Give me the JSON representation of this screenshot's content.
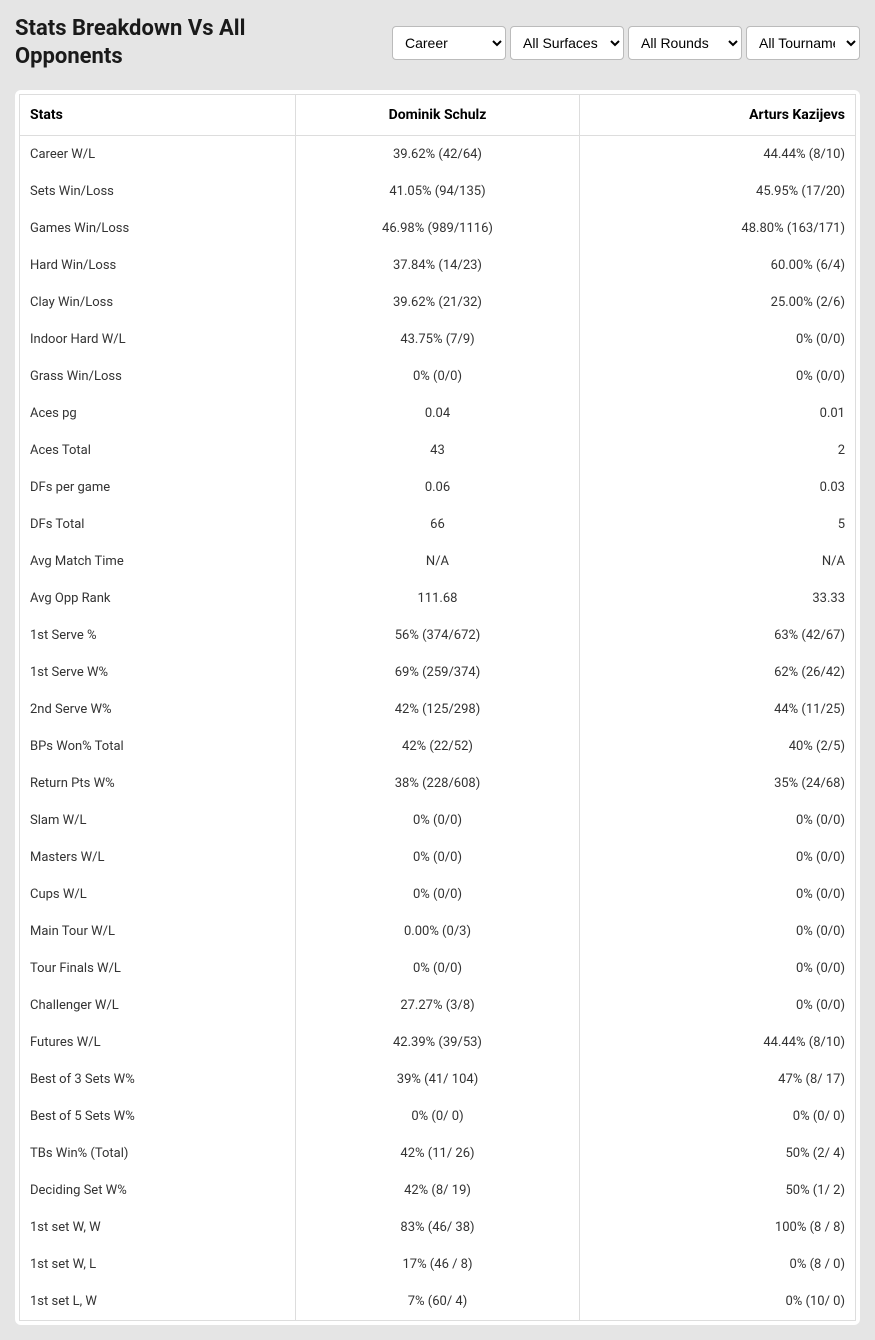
{
  "header": {
    "title": "Stats Breakdown Vs All Opponents"
  },
  "filters": {
    "career": {
      "selected": "Career",
      "options": [
        "Career"
      ]
    },
    "surface": {
      "selected": "All Surfaces",
      "options": [
        "All Surfaces"
      ]
    },
    "rounds": {
      "selected": "All Rounds",
      "options": [
        "All Rounds"
      ]
    },
    "tournaments": {
      "selected": "All Tournaments",
      "options": [
        "All Tournaments"
      ]
    }
  },
  "table": {
    "columns": [
      "Stats",
      "Dominik Schulz",
      "Arturs Kazijevs"
    ],
    "rows": [
      [
        "Career W/L",
        "39.62% (42/64)",
        "44.44% (8/10)"
      ],
      [
        "Sets Win/Loss",
        "41.05% (94/135)",
        "45.95% (17/20)"
      ],
      [
        "Games Win/Loss",
        "46.98% (989/1116)",
        "48.80% (163/171)"
      ],
      [
        "Hard Win/Loss",
        "37.84% (14/23)",
        "60.00% (6/4)"
      ],
      [
        "Clay Win/Loss",
        "39.62% (21/32)",
        "25.00% (2/6)"
      ],
      [
        "Indoor Hard W/L",
        "43.75% (7/9)",
        "0% (0/0)"
      ],
      [
        "Grass Win/Loss",
        "0% (0/0)",
        "0% (0/0)"
      ],
      [
        "Aces pg",
        "0.04",
        "0.01"
      ],
      [
        "Aces Total",
        "43",
        "2"
      ],
      [
        "DFs per game",
        "0.06",
        "0.03"
      ],
      [
        "DFs Total",
        "66",
        "5"
      ],
      [
        "Avg Match Time",
        "N/A",
        "N/A"
      ],
      [
        "Avg Opp Rank",
        "111.68",
        "33.33"
      ],
      [
        "1st Serve %",
        "56% (374/672)",
        "63% (42/67)"
      ],
      [
        "1st Serve W%",
        "69% (259/374)",
        "62% (26/42)"
      ],
      [
        "2nd Serve W%",
        "42% (125/298)",
        "44% (11/25)"
      ],
      [
        "BPs Won% Total",
        "42% (22/52)",
        "40% (2/5)"
      ],
      [
        "Return Pts W%",
        "38% (228/608)",
        "35% (24/68)"
      ],
      [
        "Slam W/L",
        "0% (0/0)",
        "0% (0/0)"
      ],
      [
        "Masters W/L",
        "0% (0/0)",
        "0% (0/0)"
      ],
      [
        "Cups W/L",
        "0% (0/0)",
        "0% (0/0)"
      ],
      [
        "Main Tour W/L",
        "0.00% (0/3)",
        "0% (0/0)"
      ],
      [
        "Tour Finals W/L",
        "0% (0/0)",
        "0% (0/0)"
      ],
      [
        "Challenger W/L",
        "27.27% (3/8)",
        "0% (0/0)"
      ],
      [
        "Futures W/L",
        "42.39% (39/53)",
        "44.44% (8/10)"
      ],
      [
        "Best of 3 Sets W%",
        "39% (41/ 104)",
        "47% (8/ 17)"
      ],
      [
        "Best of 5 Sets W%",
        "0% (0/ 0)",
        "0% (0/ 0)"
      ],
      [
        "TBs Win% (Total)",
        "42% (11/ 26)",
        "50% (2/ 4)"
      ],
      [
        "Deciding Set W%",
        "42% (8/ 19)",
        "50% (1/ 2)"
      ],
      [
        "1st set W, W",
        "83% (46/ 38)",
        "100% (8 / 8)"
      ],
      [
        "1st set W, L",
        "17% (46 / 8)",
        "0% (8 / 0)"
      ],
      [
        "1st set L, W",
        "7% (60/ 4)",
        "0% (10/ 0)"
      ]
    ]
  },
  "colors": {
    "background": "#e5e5e5",
    "table_bg": "#ffffff",
    "border": "#dddddd",
    "text": "#333333",
    "heading": "#1a1a1a"
  }
}
